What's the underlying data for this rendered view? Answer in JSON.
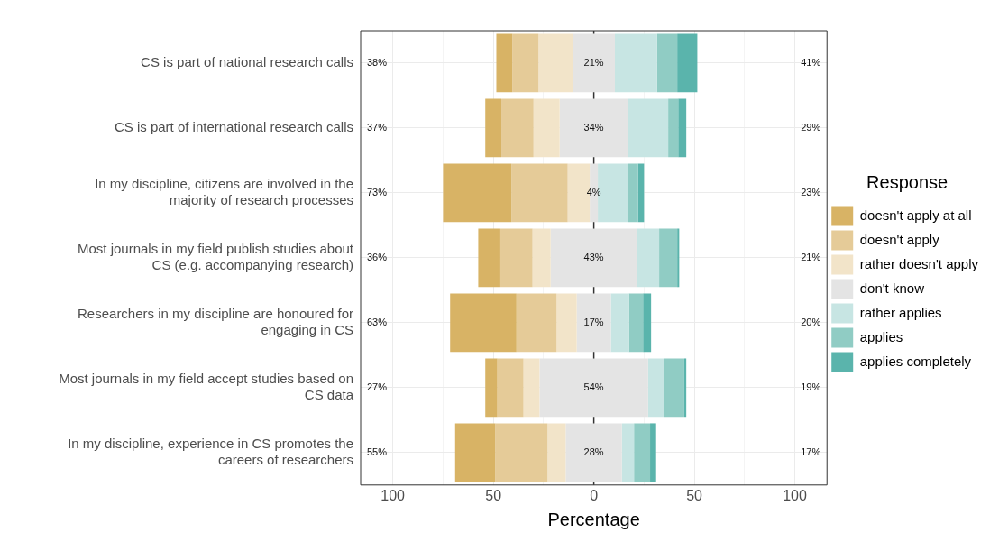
{
  "chart_data": {
    "type": "bar",
    "orientation": "horizontal",
    "xlabel": "Percentage",
    "legend_title": "Response",
    "legend": "right",
    "grid": true,
    "categories": [
      "CS is part of national research calls",
      "CS is part of international research calls",
      "In my discipline, citizens are involved in the majority of research processes",
      "Most journals in my field publish studies about CS (e.g. accompanying research)",
      "Researchers in my discipline are honoured for engaging in CS",
      "Most journals in my field accept studies based on CS data",
      "In my discipline, experience in CS promotes the careers of researchers"
    ],
    "xlim": [
      -116,
      116
    ],
    "xticks": [
      {
        "value": -100,
        "label": "100"
      },
      {
        "value": -75,
        "label": null
      },
      {
        "value": -50,
        "label": "50"
      },
      {
        "value": -25,
        "label": null
      },
      0,
      {
        "value": 25,
        "label": null
      },
      50,
      {
        "value": 75,
        "label": null
      },
      100
    ],
    "series": [
      {
        "name": "doesn't apply at all",
        "color": "#d8b365",
        "values": [
          8,
          8,
          34,
          11,
          33,
          6,
          20
        ],
        "base": [
          -48.5,
          -54,
          -75,
          -57.5,
          -71.5,
          -54,
          -69
        ]
      },
      {
        "name": "doesn't apply",
        "color": "#e5cb98",
        "values": [
          13,
          16,
          28,
          16,
          20,
          13,
          26
        ],
        "base": [
          -40.5,
          -46,
          -41,
          -46.5,
          -38.5,
          -48,
          -49
        ]
      },
      {
        "name": "rather doesn't apply",
        "color": "#f2e4c9",
        "values": [
          17,
          13,
          11,
          9,
          10,
          8,
          9
        ],
        "base": [
          -27.5,
          -30,
          -13,
          -30.5,
          -18.5,
          -35,
          -23
        ]
      },
      {
        "name": "don't know",
        "color": "#e4e4e4",
        "values": [
          21,
          34,
          4,
          43,
          17,
          54,
          28
        ],
        "base": [
          -10.5,
          -17,
          -2,
          -21.5,
          -8.5,
          -27,
          -14
        ],
        "value_labels": [
          "21%",
          "34%",
          "4%",
          "43%",
          "17%",
          "54%",
          "28%"
        ]
      },
      {
        "name": "rather applies",
        "color": "#c7e5e3",
        "values": [
          21,
          20,
          15,
          11,
          9,
          8,
          6
        ],
        "base": [
          10.5,
          17,
          2,
          21.5,
          8.5,
          27,
          14
        ]
      },
      {
        "name": "applies",
        "color": "#90ccc4",
        "values": [
          10,
          5,
          5,
          9,
          7,
          10,
          8
        ],
        "base": [
          31.5,
          37,
          17,
          32.5,
          17.5,
          35,
          20
        ]
      },
      {
        "name": "applies completely",
        "color": "#5ab4ac",
        "values": [
          10,
          4,
          3,
          1,
          4,
          1,
          3
        ],
        "base": [
          41.5,
          42,
          22,
          41.5,
          24.5,
          45,
          28
        ]
      }
    ],
    "ref_lines": [
      {
        "axis": "x",
        "value": 0,
        "color": "#333333"
      }
    ],
    "annotations": [
      "38%",
      "41%",
      "37%",
      "29%",
      "73%",
      "23%",
      "36%",
      "21%",
      "63%",
      "20%",
      "27%",
      "19%",
      "55%",
      "17%"
    ]
  }
}
